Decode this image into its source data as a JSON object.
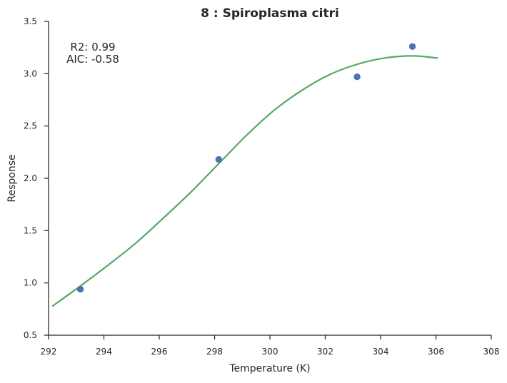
{
  "chart_data": {
    "type": "scatter",
    "title": "8 : Spiroplasma citri",
    "xlabel": "Temperature (K)",
    "ylabel": "Response",
    "xlim": [
      292,
      308
    ],
    "ylim": [
      0.5,
      3.5
    ],
    "xticks": [
      292,
      294,
      296,
      298,
      300,
      302,
      304,
      306,
      308
    ],
    "yticks": [
      0.5,
      1.0,
      1.5,
      2.0,
      2.5,
      3.0,
      3.5
    ],
    "xtick_labels": [
      "292",
      "294",
      "296",
      "298",
      "300",
      "302",
      "304",
      "306",
      "308"
    ],
    "ytick_labels": [
      "0.5",
      "1.0",
      "1.5",
      "2.0",
      "2.5",
      "3.0",
      "3.5"
    ],
    "grid": false,
    "annotations": [
      "R2: 0.99",
      "AIC: -0.58"
    ],
    "series": [
      {
        "type": "scatter",
        "x": [
          293.15,
          298.15,
          303.15,
          305.15
        ],
        "y": [
          0.94,
          2.18,
          2.97,
          3.26
        ],
        "color": "#4c72b0"
      },
      {
        "type": "line",
        "color": "#55a868",
        "x": [
          292.15,
          293.15,
          294.15,
          295.15,
          296.15,
          297.15,
          298.15,
          299.15,
          300.15,
          301.15,
          302.15,
          303.15,
          304.15,
          305.15,
          306.05
        ],
        "y": [
          0.78,
          0.97,
          1.17,
          1.38,
          1.62,
          1.87,
          2.14,
          2.41,
          2.65,
          2.84,
          2.99,
          3.09,
          3.15,
          3.17,
          3.15
        ]
      }
    ]
  }
}
